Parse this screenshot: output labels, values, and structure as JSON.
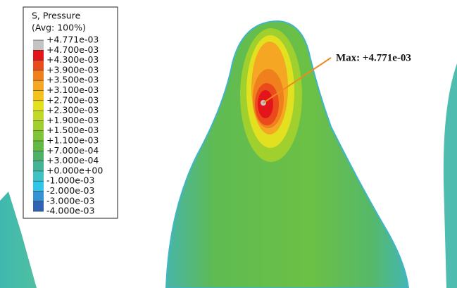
{
  "legend": {
    "title": "S, Pressure",
    "subtitle": "(Avg: 100%)",
    "labels": [
      "+4.771e-03",
      "+4.700e-03",
      "+4.300e-03",
      "+3.900e-03",
      "+3.500e-03",
      "+3.100e-03",
      "+2.700e-03",
      "+2.300e-03",
      "+1.900e-03",
      "+1.500e-03",
      "+1.100e-03",
      "+7.000e-04",
      "+3.000e-04",
      "+0.000e+00",
      "-1.000e-03",
      "-2.000e-03",
      "-3.000e-03",
      "-4.000e-03"
    ],
    "colors": [
      "#c4c4c4",
      "#e3141a",
      "#ea4a1c",
      "#f07f1e",
      "#f5a623",
      "#f3c21c",
      "#e3e11f",
      "#c3d92a",
      "#a0cf2e",
      "#80c43a",
      "#62b944",
      "#4cb267",
      "#43b496",
      "#3fc2c6",
      "#2fc6ea",
      "#3593d3",
      "#2f63b3",
      "#2f3f94"
    ]
  },
  "annotation": {
    "text": "Max: +4.771e-03"
  }
}
